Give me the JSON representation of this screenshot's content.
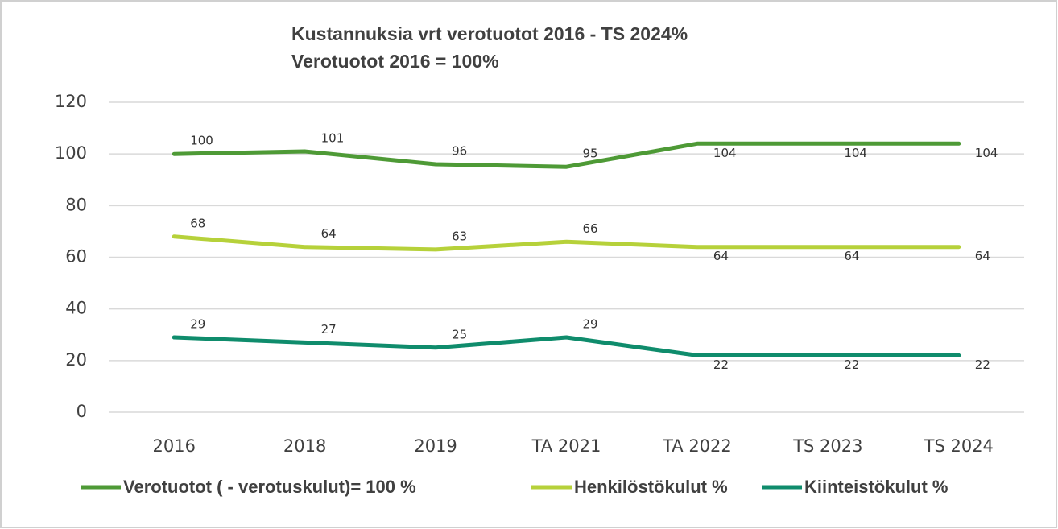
{
  "chart_data": {
    "type": "line",
    "title": "Kustannuksia vrt verotuotot  2016 - TS 2024%",
    "subtitle": "Verotuotot 2016  = 100%",
    "categories": [
      "2016",
      "2018",
      "2019",
      "TA 2021",
      "TA 2022",
      "TS 2023",
      "TS 2024"
    ],
    "series": [
      {
        "name": "Verotuotot  ( - verotuskulut)= 100 %",
        "color": "#4e9a36",
        "values": [
          100,
          101,
          96,
          95,
          104,
          104,
          104
        ]
      },
      {
        "name": "Henkilöstökulut %",
        "color": "#b6d13a",
        "values": [
          68,
          64,
          63,
          66,
          64,
          64,
          64
        ]
      },
      {
        "name": "Kiinteistökulut %",
        "color": "#0f8c6c",
        "values": [
          29,
          27,
          25,
          29,
          22,
          22,
          22
        ]
      }
    ],
    "ylim": [
      0,
      120
    ],
    "yticks": [
      0,
      20,
      40,
      60,
      80,
      100,
      120
    ],
    "grid": true,
    "legend": "bottom"
  }
}
